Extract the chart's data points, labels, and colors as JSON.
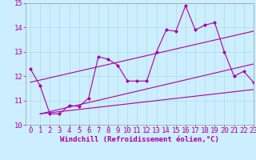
{
  "bg_color": "#cceeff",
  "line_color": "#aa00aa",
  "xlim": [
    -0.5,
    23
  ],
  "ylim": [
    10,
    15
  ],
  "xticks": [
    0,
    1,
    2,
    3,
    4,
    5,
    6,
    7,
    8,
    9,
    10,
    11,
    12,
    13,
    14,
    15,
    16,
    17,
    18,
    19,
    20,
    21,
    22,
    23
  ],
  "yticks": [
    10,
    11,
    12,
    13,
    14,
    15
  ],
  "main_line_x": [
    0,
    1,
    2,
    3,
    4,
    5,
    6,
    7,
    8,
    9,
    10,
    11,
    12,
    13,
    14,
    15,
    16,
    17,
    18,
    19,
    20,
    21,
    22,
    23
  ],
  "main_line_y": [
    12.3,
    11.6,
    10.45,
    10.45,
    10.8,
    10.75,
    11.1,
    12.8,
    12.7,
    12.45,
    11.8,
    11.8,
    11.8,
    13.0,
    13.9,
    13.85,
    14.9,
    13.9,
    14.1,
    14.2,
    13.0,
    12.0,
    12.2,
    11.75
  ],
  "trend1_x": [
    0,
    23
  ],
  "trend1_y": [
    11.75,
    13.85
  ],
  "trend2_x": [
    1,
    23
  ],
  "trend2_y": [
    10.45,
    12.5
  ],
  "trend3_x": [
    1,
    23
  ],
  "trend3_y": [
    10.45,
    11.45
  ],
  "xlabel": "Windchill (Refroidissement éolien,°C)",
  "xlabel_fontsize": 6.5,
  "tick_fontsize": 6.5,
  "grid_color": "#aadddd",
  "marker": "D",
  "marker_size": 2.0,
  "linewidth": 0.8
}
